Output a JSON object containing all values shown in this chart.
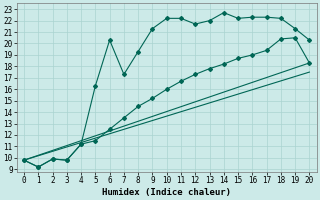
{
  "xlabel": "Humidex (Indice chaleur)",
  "background_color": "#cceae8",
  "grid_color": "#aad4d0",
  "line_color": "#006655",
  "xlim_min": -0.5,
  "xlim_max": 20.5,
  "ylim_min": 8.8,
  "ylim_max": 23.5,
  "xticks": [
    0,
    1,
    2,
    3,
    4,
    5,
    6,
    7,
    8,
    9,
    10,
    11,
    12,
    13,
    14,
    15,
    16,
    17,
    18,
    19,
    20
  ],
  "yticks": [
    9,
    10,
    11,
    12,
    13,
    14,
    15,
    16,
    17,
    18,
    19,
    20,
    21,
    22,
    23
  ],
  "line1_x": [
    0,
    1,
    2,
    3,
    4,
    5,
    6,
    7,
    8,
    9,
    10,
    11,
    12,
    13,
    14,
    15,
    16,
    17,
    18,
    19,
    20
  ],
  "line1_y": [
    9.8,
    9.2,
    9.9,
    9.8,
    11.2,
    16.3,
    20.3,
    17.3,
    19.3,
    21.3,
    22.2,
    22.2,
    21.7,
    22.0,
    22.7,
    22.2,
    22.3,
    22.3,
    22.2,
    21.3,
    20.3
  ],
  "line2_x": [
    0,
    1,
    2,
    3,
    4,
    5,
    6,
    7,
    8,
    9,
    10,
    11,
    12,
    13,
    14,
    15,
    16,
    17,
    18,
    19,
    20
  ],
  "line2_y": [
    9.8,
    9.2,
    9.9,
    9.8,
    11.2,
    11.5,
    12.5,
    13.5,
    14.5,
    15.2,
    16.0,
    16.7,
    17.3,
    17.8,
    18.2,
    18.7,
    19.0,
    19.4,
    20.4,
    20.5,
    18.3
  ],
  "line3_x": [
    0,
    20
  ],
  "line3_y": [
    9.8,
    18.3
  ],
  "line4_x": [
    0,
    20
  ],
  "line4_y": [
    9.8,
    17.5
  ],
  "markersize": 2.0,
  "linewidth": 0.8,
  "tick_fontsize": 5.5,
  "label_fontsize": 6.5
}
